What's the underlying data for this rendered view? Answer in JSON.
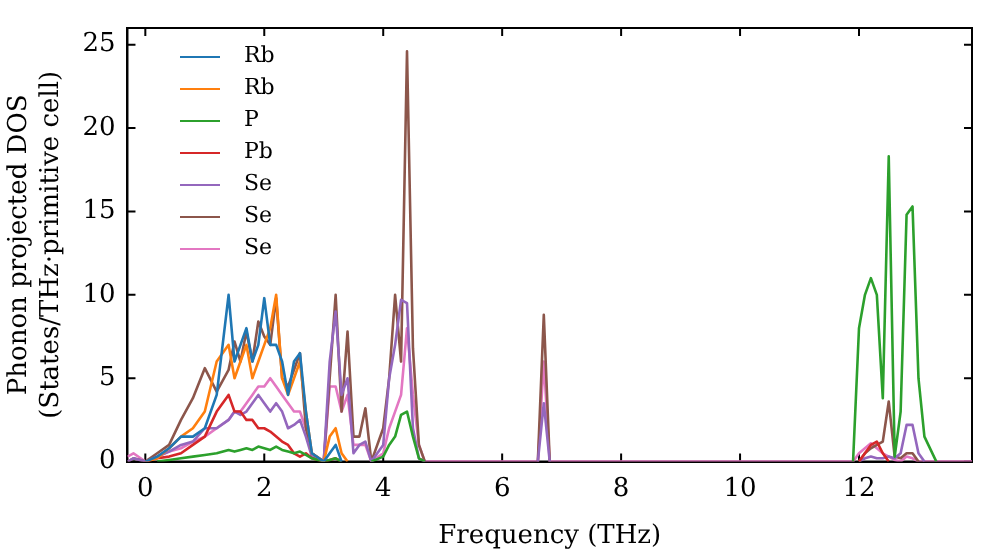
{
  "chart_data": {
    "type": "line",
    "xlabel": "Frequency (THz)",
    "ylabel": "Phonon projected DOS\n(States/THz·primitive cell)",
    "xlim": [
      -0.3,
      13.9
    ],
    "ylim": [
      0,
      26
    ],
    "xticks": [
      0,
      2,
      4,
      6,
      8,
      10,
      12
    ],
    "yticks": [
      0,
      5,
      10,
      15,
      20,
      25
    ],
    "grid": false,
    "legend": "top left",
    "x": [
      -0.3,
      -0.2,
      0,
      0.2,
      0.4,
      0.6,
      0.8,
      1.0,
      1.2,
      1.4,
      1.5,
      1.6,
      1.7,
      1.8,
      1.9,
      2.0,
      2.1,
      2.2,
      2.3,
      2.4,
      2.5,
      2.6,
      2.7,
      2.8,
      3.0,
      3.1,
      3.2,
      3.3,
      3.4,
      3.5,
      3.6,
      3.7,
      3.8,
      4.0,
      4.1,
      4.2,
      4.3,
      4.4,
      4.5,
      4.6,
      4.7,
      4.9,
      6.5,
      6.6,
      6.7,
      6.8,
      11.9,
      12.0,
      12.1,
      12.2,
      12.3,
      12.4,
      12.5,
      12.6,
      12.7,
      12.8,
      12.9,
      13.0,
      13.1,
      13.3,
      13.9
    ],
    "series": [
      {
        "name": "Rb",
        "color": "#1f77b4",
        "x": [
          0,
          0.2,
          0.4,
          0.6,
          0.8,
          1.0,
          1.2,
          1.4,
          1.5,
          1.6,
          1.7,
          1.8,
          1.9,
          2.0,
          2.1,
          2.2,
          2.3,
          2.4,
          2.5,
          2.6,
          2.7,
          2.8,
          3.0,
          3.1,
          3.2,
          3.3
        ],
        "values": [
          0,
          0.3,
          0.8,
          1.5,
          1.5,
          2,
          4,
          10,
          6,
          7,
          8,
          6,
          7,
          9.8,
          7,
          7,
          6,
          4,
          6,
          6.5,
          3,
          0.5,
          0,
          0.5,
          1,
          0
        ]
      },
      {
        "name": "Rb",
        "color": "#ff7f0e",
        "x": [
          0,
          0.2,
          0.4,
          0.6,
          0.8,
          1.0,
          1.2,
          1.4,
          1.5,
          1.6,
          1.7,
          1.8,
          1.9,
          2.0,
          2.1,
          2.2,
          2.3,
          2.4,
          2.5,
          2.6,
          2.7,
          2.8,
          3.0,
          3.1,
          3.2,
          3.3,
          3.4
        ],
        "values": [
          0,
          0.2,
          0.8,
          1.5,
          2,
          3,
          6,
          7,
          5,
          6,
          7,
          5,
          6,
          7,
          8,
          10,
          5,
          4,
          5,
          6,
          3,
          0.5,
          0,
          1.5,
          2,
          0.5,
          0
        ]
      },
      {
        "name": "P",
        "color": "#2ca02c",
        "x": [
          0.2,
          0.4,
          0.6,
          0.8,
          1.0,
          1.2,
          1.4,
          1.5,
          1.6,
          1.7,
          1.8,
          1.9,
          2.0,
          2.1,
          2.2,
          2.3,
          2.4,
          2.5,
          2.6,
          2.7,
          2.8,
          3.0,
          3.1,
          3.2,
          3.3,
          3.5,
          3.8,
          4.0,
          4.1,
          4.2,
          4.3,
          4.4,
          4.5,
          4.6,
          4.7,
          8,
          11.9,
          12.0,
          12.1,
          12.2,
          12.3,
          12.4,
          12.5,
          12.6,
          12.7,
          12.8,
          12.9,
          13.0,
          13.1,
          13.3
        ],
        "values": [
          0,
          0.1,
          0.2,
          0.3,
          0.4,
          0.5,
          0.7,
          0.6,
          0.7,
          0.8,
          0.7,
          0.9,
          0.8,
          0.7,
          0.9,
          0.7,
          0.6,
          0.5,
          0.6,
          0.4,
          0.2,
          0,
          0.1,
          0.2,
          0,
          null,
          0,
          0.3,
          1,
          1.5,
          2.8,
          3,
          1.5,
          0.2,
          0,
          null,
          0,
          8,
          10,
          11,
          10,
          3.8,
          18.3,
          0.3,
          3,
          14.8,
          15.3,
          5,
          1.5,
          0
        ]
      },
      {
        "name": "Pb",
        "color": "#d62728",
        "x": [
          0,
          0.2,
          0.4,
          0.6,
          0.8,
          1.0,
          1.2,
          1.4,
          1.5,
          1.6,
          1.7,
          1.8,
          1.9,
          2.0,
          2.1,
          2.2,
          2.3,
          2.4,
          2.5,
          2.6,
          2.7,
          2.8,
          3.0,
          3.1,
          3.2,
          3.3,
          8,
          12.0,
          12.1,
          12.2,
          12.3,
          12.4,
          12.5
        ],
        "values": [
          0,
          0.2,
          0.3,
          0.5,
          1,
          1.5,
          3,
          4,
          3,
          3,
          2.5,
          2.5,
          2,
          2,
          1.8,
          1.5,
          1.2,
          1,
          0.5,
          0.3,
          0.5,
          0.2,
          0,
          0.1,
          0.2,
          0,
          null,
          0,
          0.5,
          1,
          1.2,
          0.5,
          0
        ]
      },
      {
        "name": "Se",
        "color": "#9467bd",
        "x": [
          -0.3,
          -0.2,
          0,
          0.2,
          0.4,
          0.6,
          0.8,
          1.0,
          1.2,
          1.4,
          1.5,
          1.6,
          1.7,
          1.8,
          1.9,
          2.0,
          2.1,
          2.2,
          2.3,
          2.4,
          2.5,
          2.6,
          2.7,
          2.8,
          3.0,
          3.1,
          3.2,
          3.3,
          3.4,
          3.5,
          3.6,
          3.7,
          3.8,
          4.0,
          4.1,
          4.2,
          4.3,
          4.4,
          4.5,
          4.6,
          4.7,
          5.5,
          6.6,
          6.7,
          6.8,
          9,
          12.0,
          12.1,
          12.2,
          12.3,
          12.4,
          12.5,
          12.6,
          12.7,
          12.8,
          12.9,
          13.0,
          13.1
        ],
        "values": [
          0,
          0.2,
          0,
          0.3,
          0.6,
          1,
          1.2,
          2,
          2,
          2.5,
          3,
          2.8,
          3,
          3.5,
          4,
          3.5,
          3,
          3.5,
          3,
          2,
          2.2,
          2.5,
          1.5,
          0.3,
          0,
          6,
          9,
          4,
          5,
          0.5,
          1,
          1.2,
          0,
          1,
          5,
          7,
          9.7,
          9.5,
          2,
          0.2,
          0,
          null,
          0,
          3.5,
          0,
          null,
          0,
          0.2,
          0.3,
          0.2,
          0.2,
          0.3,
          0.2,
          0.5,
          2.2,
          2.2,
          0.5,
          0
        ]
      },
      {
        "name": "Se",
        "color": "#8c564b",
        "x": [
          -0.3,
          -0.2,
          0,
          0.2,
          0.4,
          0.6,
          0.8,
          1.0,
          1.2,
          1.4,
          1.5,
          1.6,
          1.7,
          1.8,
          1.9,
          2.0,
          2.1,
          2.2,
          2.3,
          2.4,
          2.5,
          2.6,
          2.7,
          2.8,
          3.0,
          3.1,
          3.2,
          3.3,
          3.4,
          3.5,
          3.6,
          3.7,
          3.8,
          4.0,
          4.1,
          4.2,
          4.3,
          4.4,
          4.5,
          4.6,
          4.7,
          5.5,
          6.6,
          6.7,
          6.8,
          9,
          12.0,
          12.1,
          12.2,
          12.3,
          12.4,
          12.5,
          12.6,
          12.7,
          12.8,
          12.9,
          13.0
        ],
        "values": [
          0,
          0.2,
          0,
          0.5,
          1,
          2.5,
          3.8,
          5.6,
          4.2,
          5.5,
          7.2,
          6,
          7.8,
          6,
          8.4,
          7.5,
          7,
          9.8,
          5,
          4.5,
          5.5,
          6.5,
          2,
          0.5,
          0,
          5,
          10,
          3,
          7.8,
          1.5,
          1.5,
          3.2,
          0,
          2,
          5,
          10,
          6,
          24.6,
          6.8,
          1,
          0,
          null,
          0,
          8.8,
          0,
          null,
          0,
          0.5,
          0.8,
          1,
          1.2,
          3.6,
          0.3,
          0.2,
          0.5,
          0.5,
          0
        ]
      },
      {
        "name": "Se",
        "color": "#e377c2",
        "values": [
          0.3,
          0.5,
          0,
          0.3,
          0.6,
          0.8,
          1.2,
          1.5,
          2,
          2.5,
          3,
          3,
          3.5,
          4,
          4.5,
          4.5,
          5,
          4.5,
          4,
          3.5,
          3,
          3,
          2,
          0.5,
          0,
          4.5,
          4.5,
          3,
          4,
          1,
          1,
          1,
          0,
          0.5,
          2,
          3,
          4,
          8,
          4,
          1,
          0,
          0,
          0,
          0,
          6,
          0,
          0,
          0.5,
          0.8,
          1.1,
          0.8,
          0.5,
          0.3,
          0.1,
          0,
          0.3,
          0.2,
          0,
          0,
          0,
          0
        ]
      }
    ]
  }
}
